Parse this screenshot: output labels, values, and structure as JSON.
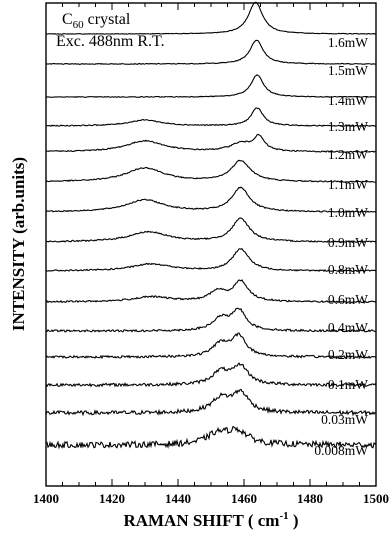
{
  "chart_data": {
    "type": "line",
    "title": "",
    "annotation": {
      "line1_main": "C",
      "line1_sub": "60",
      "line1_rest": " crystal",
      "line2": "Exc. 488nm  R.T."
    },
    "xlabel": {
      "main": "RAMAN  SHIFT  ( cm",
      "sup": "-1",
      "end": " )"
    },
    "ylabel": "INTENSITY  (arb.units)",
    "xlim": [
      1400,
      1500
    ],
    "x_ticks": [
      "1400",
      "1420",
      "1440",
      "1460",
      "1480",
      "1500"
    ],
    "y_ticks_shown": false,
    "grid": false,
    "legend": "none",
    "series": [
      {
        "name": "1.6mW",
        "peaks": [
          {
            "center": 1463.5,
            "width": 2.6,
            "height": 32
          }
        ]
      },
      {
        "name": "1.5mW",
        "peaks": [
          {
            "center": 1463.8,
            "width": 2.4,
            "height": 24
          }
        ]
      },
      {
        "name": "1.4mW",
        "peaks": [
          {
            "center": 1464.0,
            "width": 2.3,
            "height": 22
          }
        ]
      },
      {
        "name": "1.3mW",
        "peaks": [
          {
            "center": 1430.0,
            "width": 6.0,
            "height": 6
          },
          {
            "center": 1464.0,
            "width": 2.2,
            "height": 18
          }
        ]
      },
      {
        "name": "1.2mW",
        "peaks": [
          {
            "center": 1430.0,
            "width": 7.0,
            "height": 11
          },
          {
            "center": 1459.0,
            "width": 4.0,
            "height": 8
          },
          {
            "center": 1464.5,
            "width": 2.0,
            "height": 14
          }
        ]
      },
      {
        "name": "1.1mW",
        "peaks": [
          {
            "center": 1430.0,
            "width": 7.0,
            "height": 14
          },
          {
            "center": 1459.0,
            "width": 3.5,
            "height": 21
          }
        ]
      },
      {
        "name": "1.0mW",
        "peaks": [
          {
            "center": 1430.0,
            "width": 7.0,
            "height": 12
          },
          {
            "center": 1459.0,
            "width": 3.2,
            "height": 24
          }
        ]
      },
      {
        "name": "0.9mW",
        "peaks": [
          {
            "center": 1431.0,
            "width": 7.0,
            "height": 10
          },
          {
            "center": 1459.0,
            "width": 3.2,
            "height": 23
          }
        ]
      },
      {
        "name": "0.8mW",
        "peaks": [
          {
            "center": 1432.0,
            "width": 7.0,
            "height": 7
          },
          {
            "center": 1459.0,
            "width": 3.0,
            "height": 22
          }
        ]
      },
      {
        "name": "0.6mW",
        "peaks": [
          {
            "center": 1432.0,
            "width": 7.0,
            "height": 5
          },
          {
            "center": 1452.0,
            "width": 3.0,
            "height": 10
          },
          {
            "center": 1459.0,
            "width": 2.8,
            "height": 20
          }
        ]
      },
      {
        "name": "0.4mW",
        "peaks": [
          {
            "center": 1453.0,
            "width": 3.0,
            "height": 12
          },
          {
            "center": 1458.5,
            "width": 2.6,
            "height": 20
          }
        ]
      },
      {
        "name": "0.2mW",
        "peaks": [
          {
            "center": 1453.0,
            "width": 3.0,
            "height": 13
          },
          {
            "center": 1458.5,
            "width": 2.6,
            "height": 20
          }
        ]
      },
      {
        "name": "0.1mW",
        "peaks": [
          {
            "center": 1453.0,
            "width": 3.2,
            "height": 13
          },
          {
            "center": 1459.0,
            "width": 2.8,
            "height": 18
          }
        ]
      },
      {
        "name": "0.03mW",
        "peaks": [
          {
            "center": 1453.0,
            "width": 3.5,
            "height": 14
          },
          {
            "center": 1459.0,
            "width": 3.0,
            "height": 19
          }
        ]
      },
      {
        "name": "0.008mW",
        "peaks": [
          {
            "center": 1452.0,
            "width": 4.0,
            "height": 10
          },
          {
            "center": 1458.0,
            "width": 4.0,
            "height": 13
          }
        ]
      }
    ]
  }
}
